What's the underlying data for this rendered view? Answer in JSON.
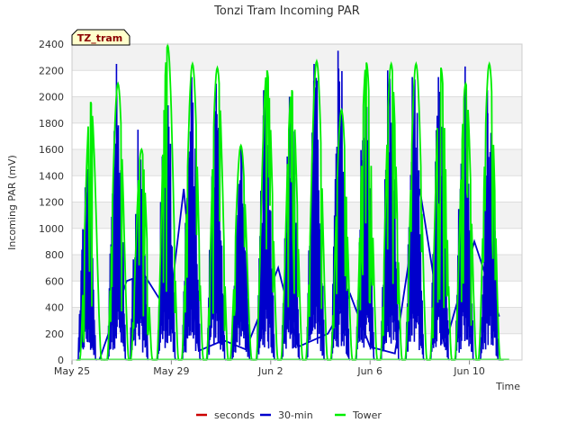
{
  "chart_data": {
    "type": "line",
    "title": "Tonzi Tram Incoming PAR",
    "xlabel": "Time",
    "ylabel": "Incoming PAR (mV)",
    "ylim": [
      0,
      2400
    ],
    "xlim_days": [
      "May 25",
      "Jun 12"
    ],
    "yticks": [
      0,
      200,
      400,
      600,
      800,
      1000,
      1200,
      1400,
      1600,
      1800,
      2000,
      2200,
      2400
    ],
    "xticks": [
      {
        "label": "May 25",
        "day": 0
      },
      {
        "label": "May 29",
        "day": 4
      },
      {
        "label": "Jun 2",
        "day": 8
      },
      {
        "label": "Jun 6",
        "day": 12
      },
      {
        "label": "Jun 10",
        "day": 16
      }
    ],
    "grid": true,
    "legend_position": "bottom",
    "site_label": "TZ_tram",
    "series": [
      {
        "name": "seconds",
        "color": "#cc0000",
        "peaks": []
      },
      {
        "name": "30-min",
        "color": "#0000cc",
        "peaks": [
          {
            "day": 0.6,
            "peak": 1450
          },
          {
            "day": 1.8,
            "peak": 2250
          },
          {
            "day": 2.7,
            "peak": 1750
          },
          {
            "day": 3.8,
            "peak": 2250
          },
          {
            "day": 4.8,
            "peak": 2150
          },
          {
            "day": 5.8,
            "peak": 2100
          },
          {
            "day": 6.8,
            "peak": 1620
          },
          {
            "day": 7.8,
            "peak": 2050
          },
          {
            "day": 8.8,
            "peak": 2000
          },
          {
            "day": 9.8,
            "peak": 2250
          },
          {
            "day": 10.8,
            "peak": 2350
          },
          {
            "day": 11.8,
            "peak": 2200
          },
          {
            "day": 12.8,
            "peak": 2200
          },
          {
            "day": 13.8,
            "peak": 2150
          },
          {
            "day": 14.8,
            "peak": 2150
          },
          {
            "day": 15.8,
            "peak": 2230
          },
          {
            "day": 16.8,
            "peak": 2050
          }
        ],
        "connector": [
          {
            "day": 1.1,
            "value": 0
          },
          {
            "day": 2.2,
            "value": 600
          },
          {
            "day": 2.9,
            "value": 650
          },
          {
            "day": 3.9,
            "value": 350
          },
          {
            "day": 4.5,
            "value": 1300
          },
          {
            "day": 5.1,
            "value": 70
          },
          {
            "day": 6.1,
            "value": 150
          },
          {
            "day": 7.0,
            "value": 80
          },
          {
            "day": 8.3,
            "value": 700
          },
          {
            "day": 9.1,
            "value": 100
          },
          {
            "day": 10.3,
            "value": 200
          },
          {
            "day": 11.2,
            "value": 500
          },
          {
            "day": 12.0,
            "value": 100
          },
          {
            "day": 13.0,
            "value": 50
          },
          {
            "day": 14.0,
            "value": 1300
          },
          {
            "day": 15.0,
            "value": 100
          },
          {
            "day": 16.2,
            "value": 900
          },
          {
            "day": 17.2,
            "value": 330
          }
        ]
      },
      {
        "name": "Tower",
        "color": "#00ee00",
        "peaks": [
          {
            "day": 0.75,
            "peak": 1960
          },
          {
            "day": 1.85,
            "peak": 2100
          },
          {
            "day": 2.8,
            "peak": 1600
          },
          {
            "day": 3.85,
            "peak": 2390
          },
          {
            "day": 4.85,
            "peak": 2250
          },
          {
            "day": 5.85,
            "peak": 2220
          },
          {
            "day": 6.8,
            "peak": 1630
          },
          {
            "day": 7.85,
            "peak": 2200
          },
          {
            "day": 8.85,
            "peak": 2050
          },
          {
            "day": 9.85,
            "peak": 2270
          },
          {
            "day": 10.85,
            "peak": 1900
          },
          {
            "day": 11.85,
            "peak": 2260
          },
          {
            "day": 12.85,
            "peak": 2250
          },
          {
            "day": 13.85,
            "peak": 2250
          },
          {
            "day": 14.85,
            "peak": 2220
          },
          {
            "day": 15.85,
            "peak": 2100
          },
          {
            "day": 16.8,
            "peak": 2250
          }
        ]
      }
    ]
  }
}
